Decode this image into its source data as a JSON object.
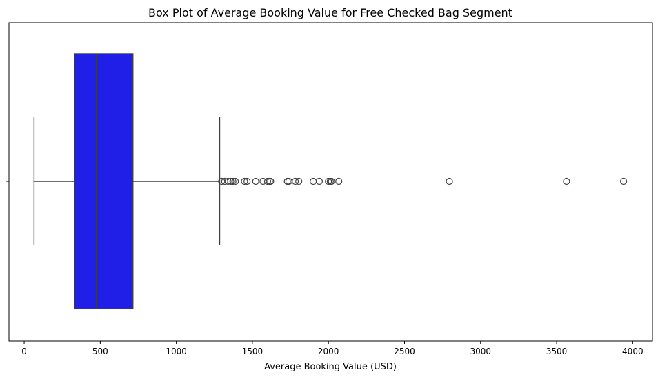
{
  "chart_data": {
    "type": "boxplot",
    "orientation": "horizontal",
    "title": "Box Plot of Average Booking Value for Free Checked Bag Segment",
    "xlabel": "Average Booking Value (USD)",
    "ylabel": "",
    "xlim": [
      -100,
      4130
    ],
    "x_ticks": [
      0,
      500,
      1000,
      1500,
      2000,
      2500,
      3000,
      3500,
      4000
    ],
    "grid": false,
    "box": {
      "whisker_low": 65,
      "q1": 330,
      "median": 475,
      "q3": 715,
      "whisker_high": 1285,
      "outliers": [
        1298,
        1318,
        1340,
        1358,
        1372,
        1388,
        1448,
        1465,
        1522,
        1570,
        1600,
        1612,
        1620,
        1730,
        1740,
        1782,
        1805,
        1900,
        1940,
        2000,
        2012,
        2020,
        2068,
        2795,
        3565,
        3940
      ]
    },
    "colors": {
      "box_fill": "#1f1fe8",
      "line": "#3f3f3f",
      "axis": "#000000"
    }
  }
}
